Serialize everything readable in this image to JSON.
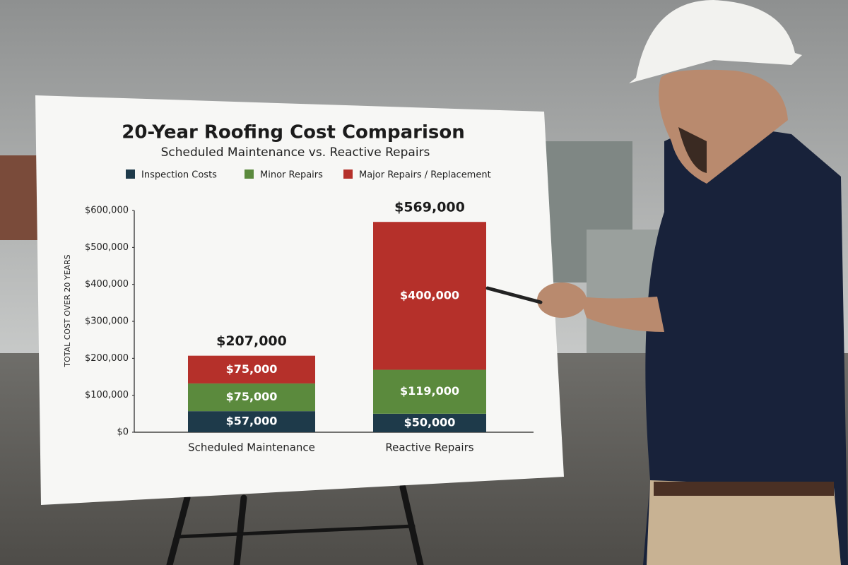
{
  "chart_data": {
    "type": "stacked_bar",
    "title": "20-Year Roofing Cost Comparison",
    "subtitle": "Scheduled Maintenance vs. Reactive Repairs",
    "y_label": "TOTAL COST OVER 20 YEARS",
    "categories": [
      "Scheduled Maintenance",
      "Reactive Repairs"
    ],
    "series": [
      {
        "name": "Inspection Costs",
        "color": "#1e3a4a",
        "values": [
          57000,
          50000
        ],
        "value_labels": [
          "$57,000",
          "$50,000"
        ]
      },
      {
        "name": "Minor Repairs",
        "color": "#5b8a3d",
        "values": [
          75000,
          119000
        ],
        "value_labels": [
          "$75,000",
          "$119,000"
        ]
      },
      {
        "name": "Major Repairs / Replacement",
        "color": "#b5302a",
        "values": [
          75000,
          400000
        ],
        "value_labels": [
          "$75,000",
          "$400,000"
        ]
      }
    ],
    "totals": [
      207000,
      569000
    ],
    "total_labels": [
      "$207,000",
      "$569,000"
    ],
    "ylim": [
      0,
      600000
    ],
    "yticks": [
      {
        "value": 0,
        "label": "$0"
      },
      {
        "value": 100000,
        "label": "$100,000"
      },
      {
        "value": 200000,
        "label": "$200,000"
      },
      {
        "value": 300000,
        "label": "$300,000"
      },
      {
        "value": 400000,
        "label": "$400,000"
      },
      {
        "value": 500000,
        "label": "$500,000"
      },
      {
        "value": 600000,
        "label": "$600,000"
      }
    ],
    "grid": false
  }
}
